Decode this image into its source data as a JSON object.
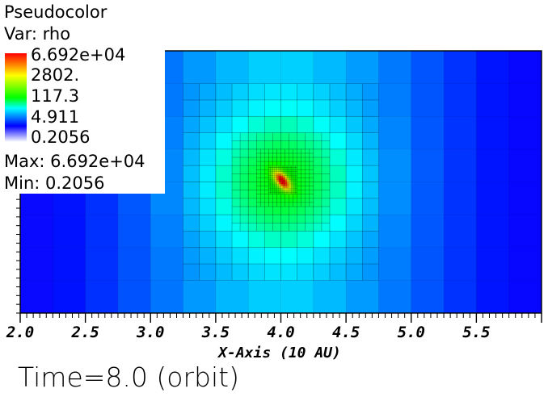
{
  "legend": {
    "title": "Pseudocolor",
    "variable": "Var: rho",
    "scale_labels": [
      "6.692e+04",
      "2802.",
      "117.3",
      "4.911",
      "0.2056"
    ],
    "max_text": "Max:  6.692e+04",
    "min_text": "Min:  0.2056",
    "colormap": [
      "#ff0000",
      "#ffff00",
      "#00ff00",
      "#00ffff",
      "#0000ff",
      "#ffffff"
    ]
  },
  "time_label": "Time=8.0 (orbit)",
  "chart_data": {
    "type": "heatmap",
    "xlabel": "X-Axis (10 AU)",
    "x_ticks": [
      "2.0",
      "2.5",
      "3.0",
      "3.5",
      "4.0",
      "4.5",
      "5.0",
      "5.5"
    ],
    "x_tick_values": [
      2.0,
      2.5,
      3.0,
      3.5,
      4.0,
      4.5,
      5.0,
      5.5
    ],
    "xlim": [
      2.0,
      6.0
    ],
    "vmin": 0.2056,
    "vmax": 66920,
    "color_scale": "log",
    "peak": {
      "x": 4.01,
      "value": 66920
    }
  }
}
